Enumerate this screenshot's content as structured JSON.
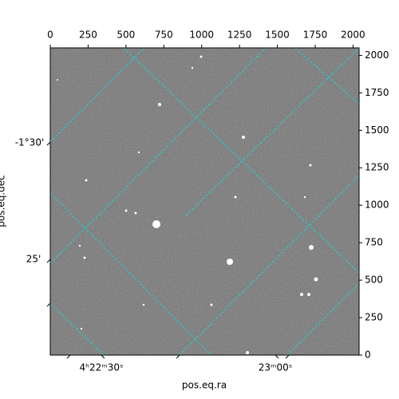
{
  "chart_data": {
    "type": "image",
    "x_label": "pos.eq.ra",
    "y_label": "pos.eq.dec",
    "ra_tick_labels": [
      "4ʰ22ᵐ30ˢ",
      "23ᵐ00ˢ"
    ],
    "dec_tick_labels": [
      "-1°30'",
      "25'"
    ],
    "xlim": [
      0,
      2040
    ],
    "ylim": [
      0,
      2050
    ],
    "xticks": [
      0,
      250,
      500,
      750,
      1000,
      1250,
      1500,
      1750,
      2000
    ],
    "yticks": [
      0,
      250,
      500,
      750,
      1000,
      1250,
      1500,
      1750,
      2000
    ]
  }
}
